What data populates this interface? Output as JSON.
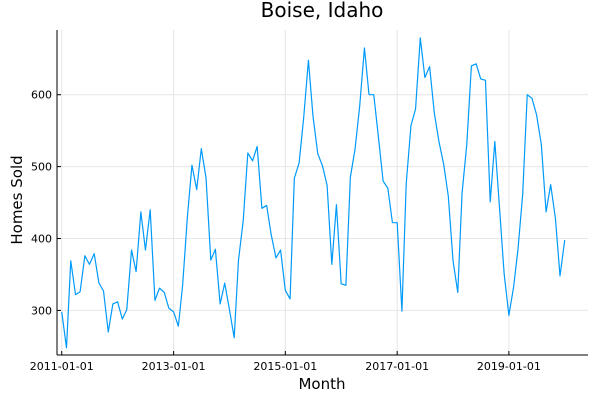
{
  "chart_data": {
    "type": "line",
    "title": "Boise, Idaho",
    "xlabel": "Month",
    "ylabel": "Homes Sold",
    "x_start": "2011-01",
    "x_step": "month",
    "xlim": [
      "2010-12-01",
      "2020-06-01"
    ],
    "ylim": [
      238,
      690
    ],
    "x_ticks": [
      "2011-01-01",
      "2013-01-01",
      "2015-01-01",
      "2017-01-01",
      "2019-01-01"
    ],
    "y_ticks": [
      300,
      400,
      500,
      600
    ],
    "grid": true,
    "legend": "none",
    "line_color": "#009AFA",
    "series": [
      {
        "values": [
          298,
          248,
          369,
          322,
          326,
          376,
          364,
          379,
          338,
          327,
          270,
          309,
          312,
          288,
          301,
          384,
          354,
          437,
          384,
          440,
          314,
          331,
          325,
          303,
          298,
          278,
          335,
          430,
          502,
          468,
          525,
          484,
          370,
          385,
          309,
          338,
          301,
          262,
          370,
          425,
          519,
          508,
          528,
          442,
          446,
          405,
          373,
          384,
          328,
          316,
          484,
          505,
          568,
          648,
          570,
          518,
          501,
          474,
          364,
          447,
          337,
          335,
          485,
          525,
          584,
          665,
          600,
          600,
          540,
          480,
          470,
          422,
          422,
          299,
          476,
          557,
          580,
          679,
          624,
          639,
          574,
          535,
          503,
          459,
          369,
          325,
          463,
          531,
          640,
          643,
          622,
          620,
          451,
          535,
          442,
          351,
          293,
          333,
          384,
          461,
          600,
          595,
          572,
          531,
          437,
          475,
          428,
          348,
          398
        ]
      }
    ]
  }
}
